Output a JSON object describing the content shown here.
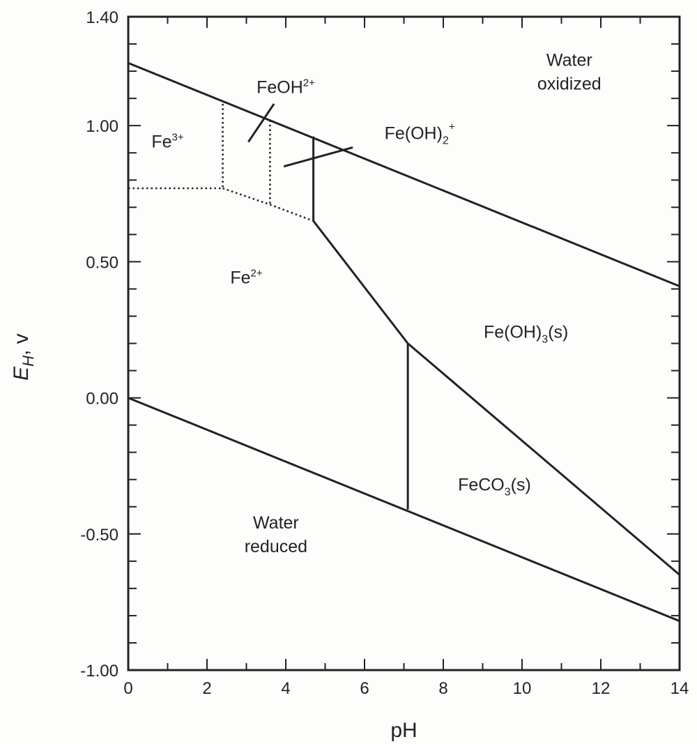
{
  "chart_data": {
    "type": "line",
    "title": "",
    "xlabel": "pH",
    "ylabel": "E",
    "ylabel_sub": "H",
    "ylabel_unit": ", v",
    "xlim": [
      0,
      14
    ],
    "ylim": [
      -1.0,
      1.4
    ],
    "x_ticks": [
      {
        "value": 0,
        "label": "0"
      },
      {
        "value": 2,
        "label": "2"
      },
      {
        "value": 4,
        "label": "4"
      },
      {
        "value": 6,
        "label": "6"
      },
      {
        "value": 8,
        "label": "8"
      },
      {
        "value": 10,
        "label": "10"
      },
      {
        "value": 12,
        "label": "12"
      },
      {
        "value": 14,
        "label": "14"
      }
    ],
    "y_ticks": [
      {
        "value": 1.4,
        "label": "1.40"
      },
      {
        "value": 1.0,
        "label": "1.00"
      },
      {
        "value": 0.5,
        "label": "0.50"
      },
      {
        "value": 0.0,
        "label": "0.00"
      },
      {
        "value": -0.5,
        "label": "-0.50"
      },
      {
        "value": -1.0,
        "label": "-1.00"
      }
    ],
    "x_minor_step": 1,
    "y_minor_step": 0.1,
    "grid": false,
    "series": [
      {
        "style": "solid",
        "points": [
          [
            0,
            1.23
          ],
          [
            14,
            0.41
          ]
        ]
      },
      {
        "style": "solid",
        "points": [
          [
            0,
            0.0
          ],
          [
            14,
            -0.82
          ]
        ]
      },
      {
        "style": "solid",
        "points": [
          [
            4.7,
            0.96
          ],
          [
            4.7,
            0.65
          ]
        ]
      },
      {
        "style": "solid",
        "points": [
          [
            4.7,
            0.65
          ],
          [
            7.1,
            0.2
          ],
          [
            14,
            -0.65
          ]
        ]
      },
      {
        "style": "solid",
        "points": [
          [
            7.1,
            0.2
          ],
          [
            7.1,
            -0.41
          ]
        ]
      },
      {
        "style": "dotted",
        "points": [
          [
            0,
            0.77
          ],
          [
            2.4,
            0.77
          ]
        ]
      },
      {
        "style": "dotted",
        "points": [
          [
            2.4,
            0.77
          ],
          [
            3.6,
            0.71
          ],
          [
            4.7,
            0.65
          ]
        ]
      },
      {
        "style": "dotted",
        "points": [
          [
            2.4,
            1.08
          ],
          [
            2.4,
            0.77
          ]
        ]
      },
      {
        "style": "dotted",
        "points": [
          [
            3.6,
            1.02
          ],
          [
            3.6,
            0.71
          ]
        ]
      },
      {
        "style": "solid",
        "points": [
          [
            3.05,
            0.94
          ],
          [
            3.7,
            1.08
          ]
        ]
      },
      {
        "style": "solid",
        "points": [
          [
            3.95,
            0.85
          ],
          [
            5.7,
            0.92
          ]
        ]
      }
    ],
    "annotations": [
      {
        "name": "water-oxidized",
        "lines": [
          "Water",
          "oxidized"
        ],
        "x": 11.2,
        "y": 1.22
      },
      {
        "name": "fe3",
        "base": "Fe",
        "sup": "3+",
        "x": 1.0,
        "y": 0.92
      },
      {
        "name": "feoh2",
        "base": "FeOH",
        "sup": "2+",
        "x": 4.0,
        "y": 1.12
      },
      {
        "name": "feoh2plus",
        "base": "Fe(OH)",
        "sub": "2",
        "sup": "+",
        "x": 7.4,
        "y": 0.95
      },
      {
        "name": "fe2",
        "base": "Fe",
        "sup": "2+",
        "x": 3.0,
        "y": 0.42
      },
      {
        "name": "feoh3",
        "base": "Fe(OH)",
        "sub": "3",
        "suffix": "(s)",
        "x": 10.1,
        "y": 0.22
      },
      {
        "name": "feco3",
        "base": "FeCO",
        "sub": "3",
        "suffix": "(s)",
        "x": 9.3,
        "y": -0.34
      },
      {
        "name": "water-reduced",
        "lines": [
          "Water",
          "reduced"
        ],
        "x": 3.75,
        "y": -0.48
      }
    ]
  },
  "colors": {
    "ink": "#222222",
    "background": "#fdfdfc"
  }
}
